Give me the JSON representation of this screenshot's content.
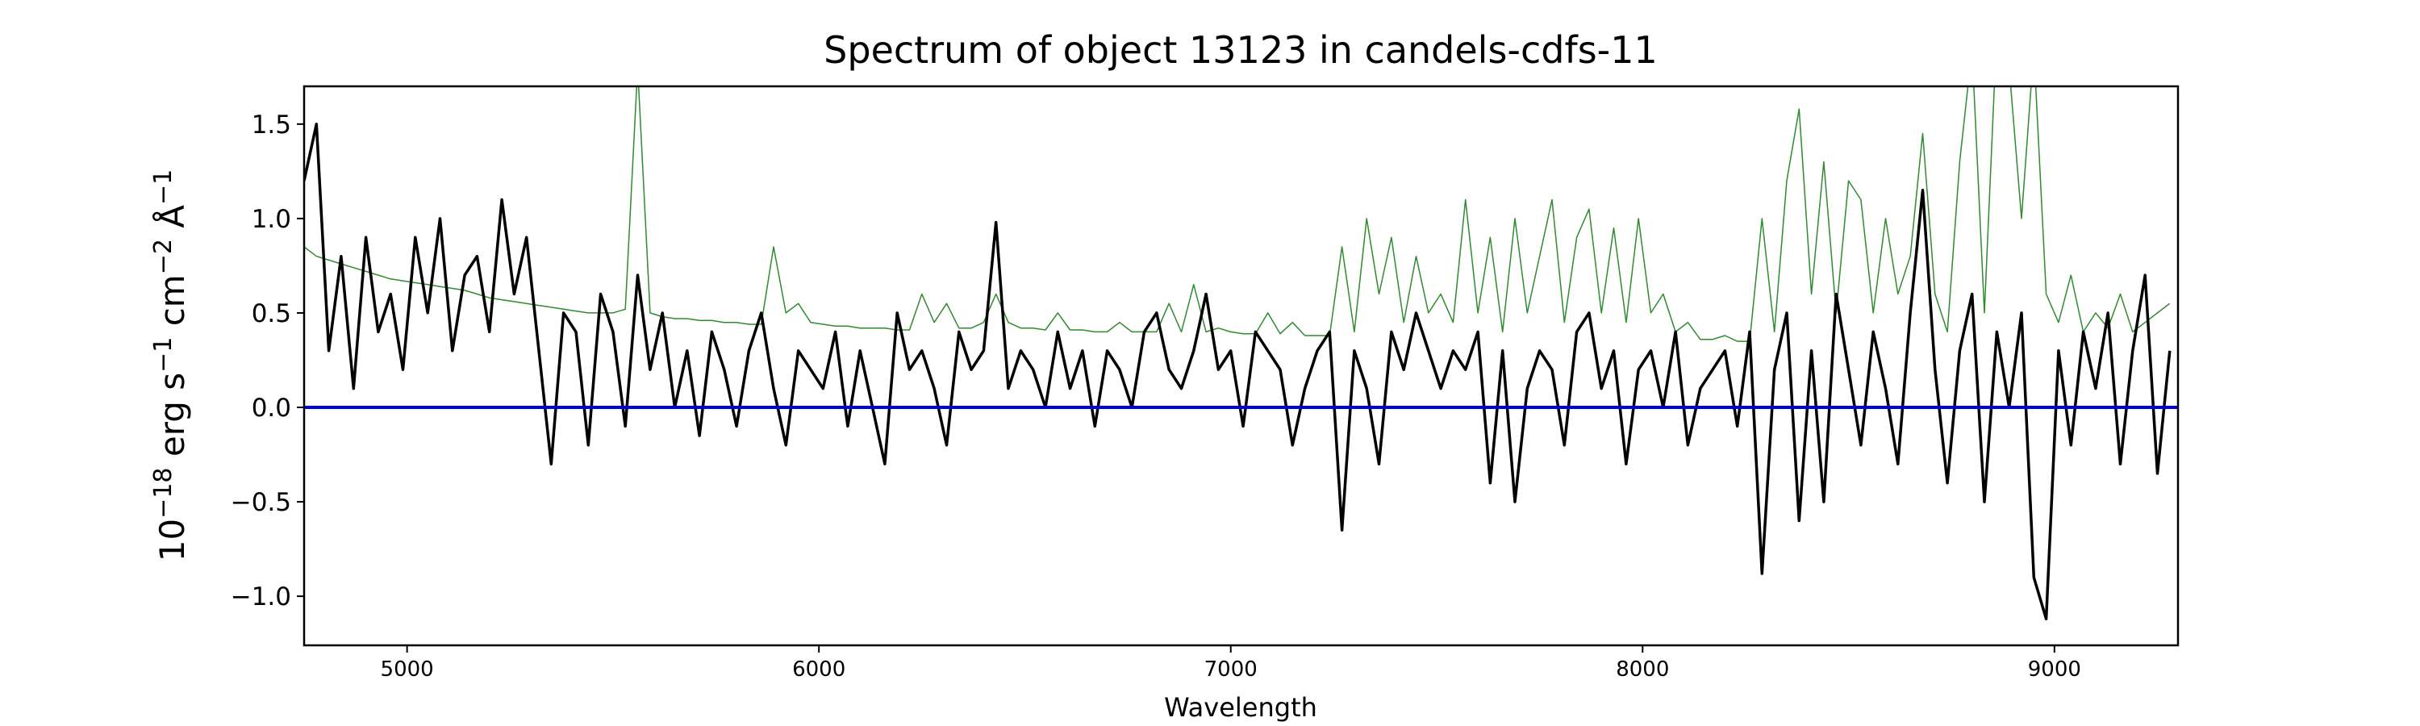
{
  "chart_data": {
    "type": "line",
    "title": "Spectrum of object 13123 in candels-cdfs-11",
    "x_label": "Wavelength",
    "y_label": [
      {
        "text": "10",
        "sup": false
      },
      {
        "text": "−18",
        "sup": true
      },
      {
        "text": " erg s",
        "sup": false
      },
      {
        "text": "−1",
        "sup": true
      },
      {
        "text": " cm",
        "sup": false
      },
      {
        "text": "−2",
        "sup": true
      },
      {
        "text": " Å",
        "sup": false
      },
      {
        "text": "−1",
        "sup": true
      }
    ],
    "xlim": [
      4750,
      9300
    ],
    "ylim": [
      -1.26,
      1.7
    ],
    "xticks": [
      5000,
      6000,
      7000,
      8000,
      9000
    ],
    "yticks": [
      {
        "value": -1,
        "label": "−1.0"
      },
      {
        "value": -0.5,
        "label": "−0.5"
      },
      {
        "value": 0,
        "label": "0.0"
      },
      0.5,
      {
        "value": 1,
        "label": "1.0"
      },
      1.5
    ],
    "hline": {
      "value": 0,
      "color": "#0000dd"
    },
    "x": [
      4750,
      4780,
      4810,
      4840,
      4870,
      4900,
      4930,
      4960,
      4990,
      5020,
      5050,
      5080,
      5110,
      5140,
      5170,
      5200,
      5230,
      5260,
      5290,
      5320,
      5350,
      5380,
      5410,
      5440,
      5470,
      5500,
      5530,
      5560,
      5590,
      5620,
      5650,
      5680,
      5710,
      5740,
      5770,
      5800,
      5830,
      5860,
      5890,
      5920,
      5950,
      5980,
      6010,
      6040,
      6070,
      6100,
      6130,
      6160,
      6190,
      6220,
      6250,
      6280,
      6310,
      6340,
      6370,
      6400,
      6430,
      6460,
      6490,
      6520,
      6550,
      6580,
      6610,
      6640,
      6670,
      6700,
      6730,
      6760,
      6790,
      6820,
      6850,
      6880,
      6910,
      6940,
      6970,
      7000,
      7030,
      7060,
      7090,
      7120,
      7150,
      7180,
      7210,
      7240,
      7270,
      7300,
      7330,
      7360,
      7390,
      7420,
      7450,
      7480,
      7510,
      7540,
      7570,
      7600,
      7630,
      7660,
      7690,
      7720,
      7750,
      7780,
      7810,
      7840,
      7870,
      7900,
      7930,
      7960,
      7990,
      8020,
      8050,
      8080,
      8110,
      8140,
      8170,
      8200,
      8230,
      8260,
      8290,
      8320,
      8350,
      8380,
      8410,
      8440,
      8470,
      8500,
      8530,
      8560,
      8590,
      8620,
      8650,
      8680,
      8710,
      8740,
      8770,
      8800,
      8830,
      8860,
      8890,
      8920,
      8950,
      8980,
      9010,
      9040,
      9070,
      9100,
      9130,
      9160,
      9190,
      9220,
      9250,
      9280
    ],
    "series": [
      {
        "color": "#2e8b2e",
        "width": 1.5,
        "values": [
          0.85,
          0.8,
          0.78,
          0.76,
          0.74,
          0.72,
          0.7,
          0.68,
          0.67,
          0.66,
          0.65,
          0.64,
          0.63,
          0.62,
          0.6,
          0.58,
          0.57,
          0.56,
          0.55,
          0.54,
          0.53,
          0.52,
          0.51,
          0.5,
          0.5,
          0.5,
          0.52,
          1.8,
          0.5,
          0.48,
          0.47,
          0.47,
          0.46,
          0.46,
          0.45,
          0.45,
          0.44,
          0.44,
          0.85,
          0.5,
          0.55,
          0.45,
          0.44,
          0.43,
          0.43,
          0.42,
          0.42,
          0.42,
          0.41,
          0.41,
          0.6,
          0.45,
          0.55,
          0.42,
          0.42,
          0.45,
          0.6,
          0.45,
          0.42,
          0.42,
          0.41,
          0.5,
          0.41,
          0.41,
          0.4,
          0.4,
          0.45,
          0.4,
          0.4,
          0.4,
          0.55,
          0.4,
          0.65,
          0.4,
          0.42,
          0.4,
          0.39,
          0.39,
          0.5,
          0.39,
          0.45,
          0.38,
          0.38,
          0.38,
          0.85,
          0.4,
          1.0,
          0.6,
          0.9,
          0.45,
          0.8,
          0.5,
          0.6,
          0.45,
          1.1,
          0.5,
          0.9,
          0.4,
          1.0,
          0.5,
          0.8,
          1.1,
          0.45,
          0.9,
          1.05,
          0.5,
          0.95,
          0.45,
          1.0,
          0.5,
          0.6,
          0.4,
          0.45,
          0.36,
          0.36,
          0.38,
          0.35,
          0.35,
          1.0,
          0.4,
          1.2,
          1.58,
          0.6,
          1.3,
          0.5,
          1.2,
          1.1,
          0.5,
          1.0,
          0.6,
          0.8,
          1.45,
          0.6,
          0.4,
          1.3,
          1.9,
          0.5,
          2.0,
          1.8,
          1.0,
          1.9,
          0.6,
          0.45,
          0.7,
          0.4,
          0.5,
          0.42,
          0.6,
          0.4,
          0.45,
          0.5,
          0.55
        ]
      },
      {
        "color": "#000000",
        "width": 3.5,
        "values": [
          1.2,
          1.5,
          0.3,
          0.8,
          0.1,
          0.9,
          0.4,
          0.6,
          0.2,
          0.9,
          0.5,
          1.0,
          0.3,
          0.7,
          0.8,
          0.4,
          1.1,
          0.6,
          0.9,
          0.3,
          -0.3,
          0.5,
          0.4,
          -0.2,
          0.6,
          0.4,
          -0.1,
          0.7,
          0.2,
          0.5,
          0.0,
          0.3,
          -0.15,
          0.4,
          0.2,
          -0.1,
          0.3,
          0.5,
          0.1,
          -0.2,
          0.3,
          0.2,
          0.1,
          0.4,
          -0.1,
          0.3,
          0.0,
          -0.3,
          0.5,
          0.2,
          0.3,
          0.1,
          -0.2,
          0.4,
          0.2,
          0.3,
          0.98,
          0.1,
          0.3,
          0.2,
          0.0,
          0.4,
          0.1,
          0.3,
          -0.1,
          0.3,
          0.2,
          0.0,
          0.4,
          0.5,
          0.2,
          0.1,
          0.3,
          0.6,
          0.2,
          0.3,
          -0.1,
          0.4,
          0.3,
          0.2,
          -0.2,
          0.1,
          0.3,
          0.4,
          -0.65,
          0.3,
          0.1,
          -0.3,
          0.4,
          0.2,
          0.5,
          0.3,
          0.1,
          0.3,
          0.2,
          0.4,
          -0.4,
          0.3,
          -0.5,
          0.1,
          0.3,
          0.2,
          -0.2,
          0.4,
          0.5,
          0.1,
          0.3,
          -0.3,
          0.2,
          0.3,
          0.0,
          0.4,
          -0.2,
          0.1,
          0.2,
          0.3,
          -0.1,
          0.4,
          -0.88,
          0.2,
          0.5,
          -0.6,
          0.3,
          -0.5,
          0.6,
          0.2,
          -0.2,
          0.4,
          0.1,
          -0.3,
          0.5,
          1.15,
          0.2,
          -0.4,
          0.3,
          0.6,
          -0.5,
          0.4,
          0.0,
          0.5,
          -0.9,
          -1.12,
          0.3,
          -0.2,
          0.4,
          0.1,
          0.5,
          -0.3,
          0.3,
          0.7,
          -0.35,
          0.3
        ]
      }
    ]
  }
}
